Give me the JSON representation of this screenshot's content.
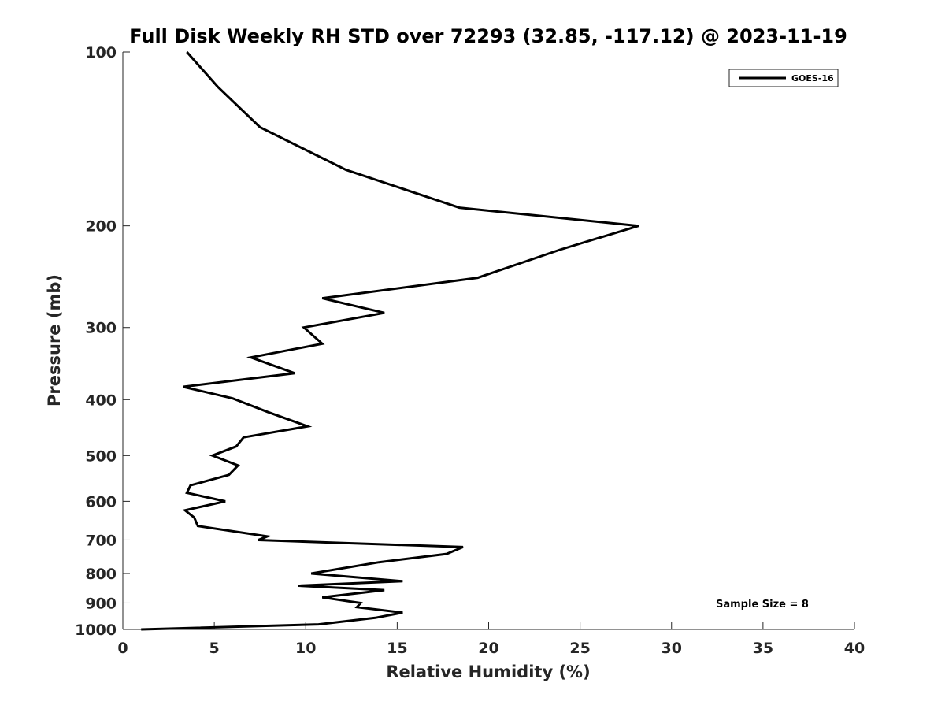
{
  "chart_data": {
    "type": "line",
    "title": "Full Disk Weekly RH STD over 72293 (32.85, -117.12) @ 2023-11-19",
    "xlabel": "Relative Humidity (%)",
    "ylabel": "Pressure (mb)",
    "xlim": [
      0,
      40
    ],
    "ylim": [
      100,
      1000
    ],
    "y_scale": "log",
    "y_reversed": true,
    "x_ticks": [
      0,
      5,
      10,
      15,
      20,
      25,
      30,
      35,
      40
    ],
    "y_ticks": [
      100,
      200,
      300,
      400,
      500,
      600,
      700,
      800,
      900,
      1000
    ],
    "grid": false,
    "legend_position": "top-right",
    "series": [
      {
        "name": "GOES-16",
        "color": "#000000",
        "points": [
          [
            3.5,
            100
          ],
          [
            5.2,
            115
          ],
          [
            7.5,
            135
          ],
          [
            12.2,
            160
          ],
          [
            18.4,
            186
          ],
          [
            28.2,
            200
          ],
          [
            23.9,
            220
          ],
          [
            19.4,
            246
          ],
          [
            10.9,
            267
          ],
          [
            14.3,
            283
          ],
          [
            9.9,
            300
          ],
          [
            10.9,
            320
          ],
          [
            7.0,
            338
          ],
          [
            9.4,
            360
          ],
          [
            3.3,
            380
          ],
          [
            6.0,
            398
          ],
          [
            7.9,
            420
          ],
          [
            10.1,
            445
          ],
          [
            6.6,
            465
          ],
          [
            6.2,
            482
          ],
          [
            4.9,
            500
          ],
          [
            6.3,
            520
          ],
          [
            5.8,
            540
          ],
          [
            3.7,
            563
          ],
          [
            3.5,
            580
          ],
          [
            5.6,
            600
          ],
          [
            3.4,
            622
          ],
          [
            3.9,
            640
          ],
          [
            4.1,
            662
          ],
          [
            7.9,
            690
          ],
          [
            7.4,
            700
          ],
          [
            18.6,
            720
          ],
          [
            17.7,
            740
          ],
          [
            14.0,
            765
          ],
          [
            10.3,
            800
          ],
          [
            15.3,
            825
          ],
          [
            9.6,
            840
          ],
          [
            14.3,
            855
          ],
          [
            10.9,
            880
          ],
          [
            13.0,
            900
          ],
          [
            12.8,
            915
          ],
          [
            15.3,
            935
          ],
          [
            13.8,
            955
          ],
          [
            10.7,
            980
          ],
          [
            1.0,
            1000
          ]
        ]
      }
    ],
    "annotations": [
      "Sample Size = 8"
    ]
  }
}
